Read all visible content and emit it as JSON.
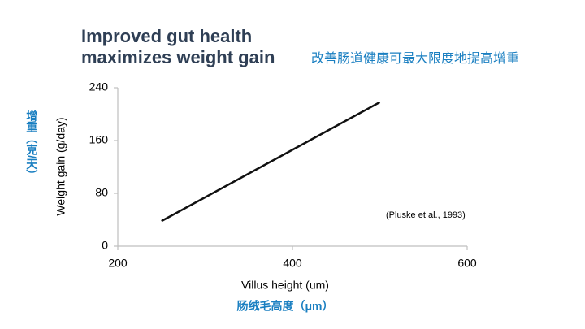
{
  "chart_data": {
    "type": "line",
    "title": [
      "Improved gut health",
      "maximizes weight gain"
    ],
    "subtitle": "改善肠道健康可最大限度地提高增重",
    "x_label": "Villus height (um)",
    "x_label_cn": "肠绒毛高度（μm）",
    "y_label": "Weight gain (g/day)",
    "y_label_cn": "增重（克/天）",
    "annotation": "(Pluske et al., 1993)",
    "x": [
      250,
      500
    ],
    "series": [
      {
        "color": "#111111",
        "values": [
          38,
          218
        ]
      }
    ],
    "xlim": [
      200,
      600
    ],
    "xticks": [
      200,
      400,
      600
    ],
    "ylim": [
      0,
      240
    ],
    "yticks": [
      0,
      80,
      160,
      240
    ],
    "grid": false
  }
}
